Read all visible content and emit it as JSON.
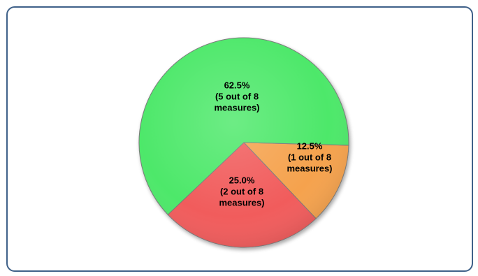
{
  "chart_data": {
    "type": "pie",
    "title": "",
    "start_angle_deg": 1.5,
    "direction": "clockwise",
    "slices": [
      {
        "value": 12.5,
        "label_lines": [
          "12.5%",
          "(1 out of 8",
          "measures)"
        ],
        "color": "#f5a24d"
      },
      {
        "value": 25.0,
        "label_lines": [
          "25.0%",
          "(2 out of 8",
          "measures)"
        ],
        "color": "#f15b5b"
      },
      {
        "value": 62.5,
        "label_lines": [
          "62.5%",
          "(5 out of 8",
          "measures)"
        ],
        "color": "#4ee86a"
      }
    ]
  },
  "colors": {
    "frame_border": "#3f6189",
    "slice_stroke": "#7a7a7a",
    "label_text": "#000000"
  }
}
